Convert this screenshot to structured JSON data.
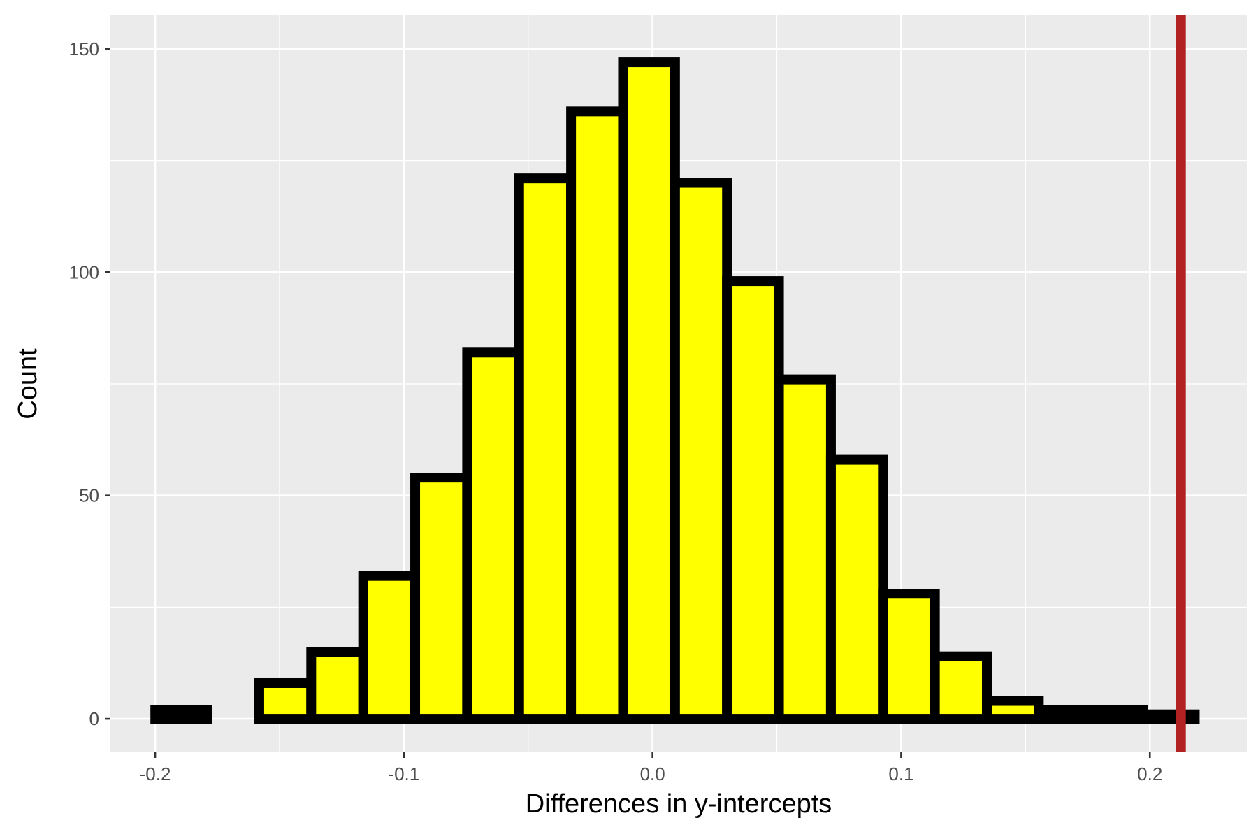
{
  "chart_data": {
    "type": "bar",
    "subtype": "histogram",
    "title": "",
    "xlabel": "Differences in y-intercepts",
    "ylabel": "Count",
    "xlim": [
      -0.218,
      0.239
    ],
    "ylim": [
      -7.5,
      157.5
    ],
    "x_ticks": [
      -0.2,
      -0.1,
      0.0,
      0.1,
      0.2
    ],
    "x_tick_labels": [
      "-0.2",
      "-0.1",
      "0.0",
      "0.1",
      "0.2"
    ],
    "y_ticks": [
      0,
      50,
      100,
      150
    ],
    "y_tick_labels": [
      "0",
      "50",
      "100",
      "150"
    ],
    "bin_width": 0.0209,
    "bin_centers": [
      -0.1895,
      -0.1686,
      -0.1477,
      -0.1268,
      -0.1059,
      -0.085,
      -0.0641,
      -0.0432,
      -0.0223,
      -0.0014,
      0.0195,
      0.0404,
      0.0613,
      0.0822,
      0.1031,
      0.124,
      0.1449,
      0.1658,
      0.1867,
      0.2076
    ],
    "counts": [
      2,
      0,
      8,
      15,
      32,
      54,
      82,
      121,
      136,
      147,
      120,
      98,
      76,
      58,
      28,
      14,
      4,
      2,
      2,
      1
    ],
    "reference_line": {
      "x": 0.2125,
      "color": "#b22222"
    },
    "bar_fill": "#ffff00",
    "bar_outline": "#000000",
    "panel_background": "#ebebeb",
    "grid": true,
    "legend": "none"
  }
}
